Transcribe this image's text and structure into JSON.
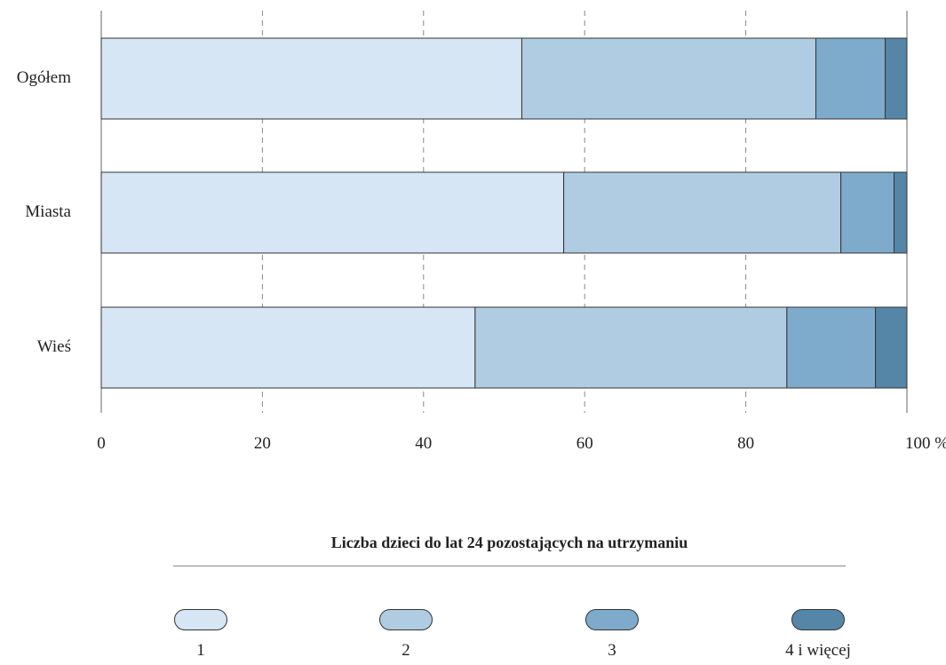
{
  "chart_data": {
    "type": "bar",
    "orientation": "horizontal",
    "stacked": true,
    "categories": [
      "Ogółem",
      "Miasta",
      "Wieś"
    ],
    "series": [
      {
        "name": "1",
        "color": "#d6e6f5",
        "values": [
          52.2,
          57.4,
          46.4
        ]
      },
      {
        "name": "2",
        "color": "#afcce2",
        "values": [
          36.5,
          34.4,
          38.7
        ]
      },
      {
        "name": "3",
        "color": "#7eabcc",
        "values": [
          8.6,
          6.6,
          11.0
        ]
      },
      {
        "name": "4 i więcej",
        "color": "#5586a8",
        "values": [
          2.7,
          1.6,
          3.9
        ]
      }
    ],
    "xlim": [
      0,
      100
    ],
    "x_ticks": [
      {
        "value": 0,
        "label": "0"
      },
      {
        "value": 20,
        "label": "20"
      },
      {
        "value": 40,
        "label": "40"
      },
      {
        "value": 60,
        "label": "60"
      },
      {
        "value": 80,
        "label": "80"
      },
      {
        "value": 100,
        "label": "100 %"
      }
    ],
    "grid": "vertical-dashed",
    "legend_title": "Liczba dzieci do lat 24 pozostających na utrzymaniu",
    "legend_placement": "bottom"
  }
}
